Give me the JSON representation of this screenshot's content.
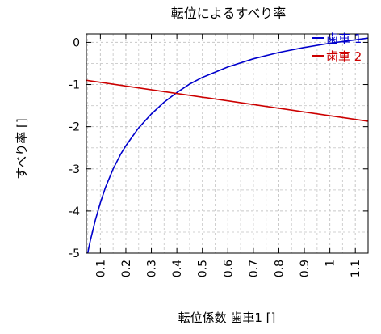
{
  "chart_data": {
    "type": "line",
    "title": "転位によるすべり率",
    "xlabel": "転位係数 歯車1 []",
    "ylabel": "すべり率 []",
    "xlim": [
      0.045,
      1.15
    ],
    "ylim": [
      -5,
      0.2
    ],
    "grid": true,
    "legend_position": "top-right",
    "x_ticks": [
      {
        "value": 0.1,
        "label": "0.1"
      },
      {
        "value": 0.2,
        "label": "0.2"
      },
      {
        "value": 0.3,
        "label": "0.3"
      },
      {
        "value": 0.4,
        "label": "0.4"
      },
      {
        "value": 0.5,
        "label": "0.5"
      },
      {
        "value": 0.6,
        "label": "0.6"
      },
      {
        "value": 0.7,
        "label": "0.7"
      },
      {
        "value": 0.8,
        "label": "0.8"
      },
      {
        "value": 0.9,
        "label": "0.9"
      },
      {
        "value": 1.0,
        "label": "1"
      },
      {
        "value": 1.1,
        "label": "1.1"
      }
    ],
    "y_ticks": [
      {
        "value": 0,
        "label": "0"
      },
      {
        "value": -1,
        "label": "-1"
      },
      {
        "value": -2,
        "label": "-2"
      },
      {
        "value": -3,
        "label": "-3"
      },
      {
        "value": -4,
        "label": "-4"
      },
      {
        "value": -5,
        "label": "-5"
      }
    ],
    "series": [
      {
        "name": "歯車 1",
        "color": "#0000cc",
        "x": [
          0.05,
          0.06,
          0.08,
          0.1,
          0.12,
          0.15,
          0.18,
          0.2,
          0.25,
          0.3,
          0.35,
          0.4,
          0.45,
          0.5,
          0.6,
          0.7,
          0.8,
          0.9,
          1.0,
          1.1,
          1.15
        ],
        "y": [
          -5.0,
          -4.72,
          -4.22,
          -3.8,
          -3.44,
          -3.0,
          -2.65,
          -2.45,
          -2.03,
          -1.7,
          -1.42,
          -1.19,
          -0.99,
          -0.83,
          -0.58,
          -0.39,
          -0.24,
          -0.12,
          -0.02,
          0.06,
          0.1
        ]
      },
      {
        "name": "歯車 2",
        "color": "#cc0000",
        "x": [
          0.045,
          1.15
        ],
        "y": [
          -0.9,
          -1.87
        ]
      }
    ]
  }
}
